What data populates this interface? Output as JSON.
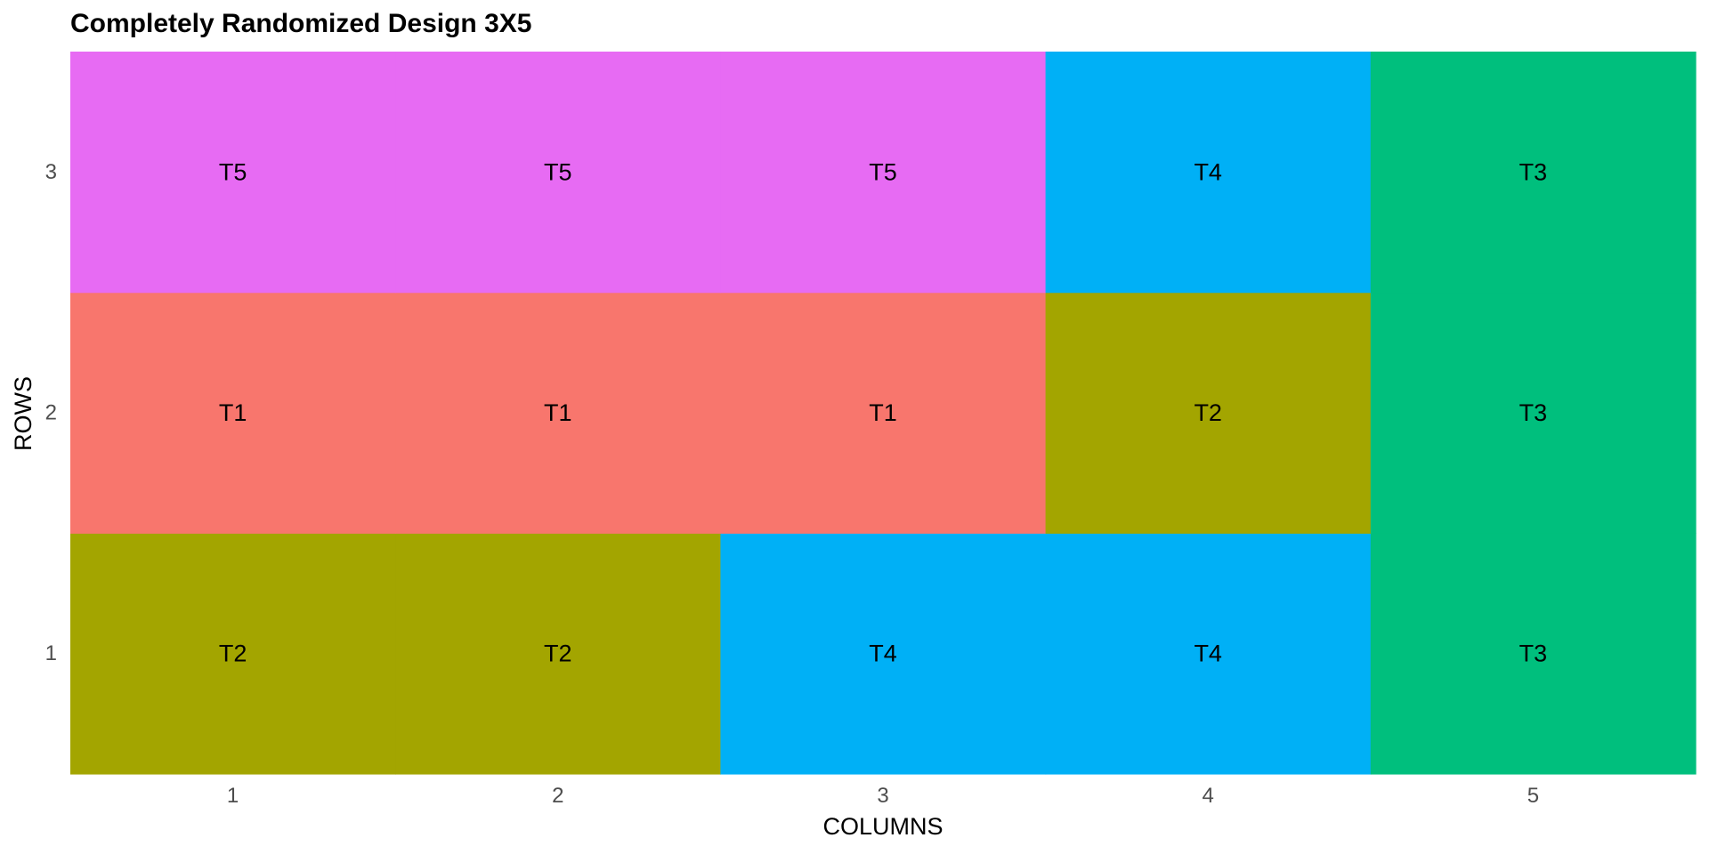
{
  "chart_data": {
    "type": "heatmap",
    "title": "Completely Randomized Design 3X5",
    "xlabel": "COLUMNS",
    "ylabel": "ROWS",
    "x_categories": [
      "1",
      "2",
      "3",
      "4",
      "5"
    ],
    "y_categories": [
      "1",
      "2",
      "3"
    ],
    "treatment_colors": {
      "T1": "#F8766D",
      "T2": "#A3A500",
      "T3": "#00BF7D",
      "T4": "#00B0F6",
      "T5": "#E76BF3"
    },
    "cells": [
      {
        "column": 1,
        "row": 1,
        "treatment": "T2"
      },
      {
        "column": 2,
        "row": 1,
        "treatment": "T2"
      },
      {
        "column": 3,
        "row": 1,
        "treatment": "T4"
      },
      {
        "column": 4,
        "row": 1,
        "treatment": "T4"
      },
      {
        "column": 5,
        "row": 1,
        "treatment": "T3"
      },
      {
        "column": 1,
        "row": 2,
        "treatment": "T1"
      },
      {
        "column": 2,
        "row": 2,
        "treatment": "T1"
      },
      {
        "column": 3,
        "row": 2,
        "treatment": "T1"
      },
      {
        "column": 4,
        "row": 2,
        "treatment": "T2"
      },
      {
        "column": 5,
        "row": 2,
        "treatment": "T3"
      },
      {
        "column": 1,
        "row": 3,
        "treatment": "T5"
      },
      {
        "column": 2,
        "row": 3,
        "treatment": "T5"
      },
      {
        "column": 3,
        "row": 3,
        "treatment": "T5"
      },
      {
        "column": 4,
        "row": 3,
        "treatment": "T4"
      },
      {
        "column": 5,
        "row": 3,
        "treatment": "T3"
      }
    ],
    "grid": false,
    "legend": "none"
  }
}
